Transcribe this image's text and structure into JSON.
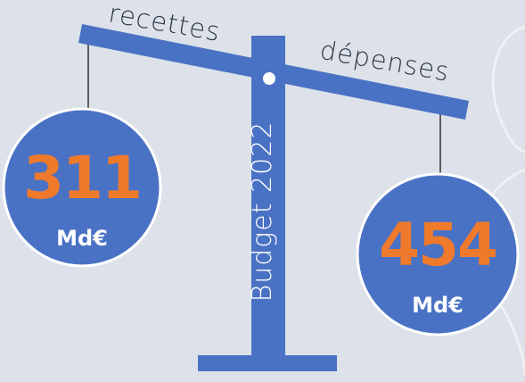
{
  "beam": {
    "left_label": "recettes",
    "right_label": "dépenses"
  },
  "pillar": {
    "label": "Budget 2022"
  },
  "left_pan": {
    "amount": 311,
    "unit": "Md€"
  },
  "right_pan": {
    "amount": 454,
    "unit": "Md€"
  }
}
